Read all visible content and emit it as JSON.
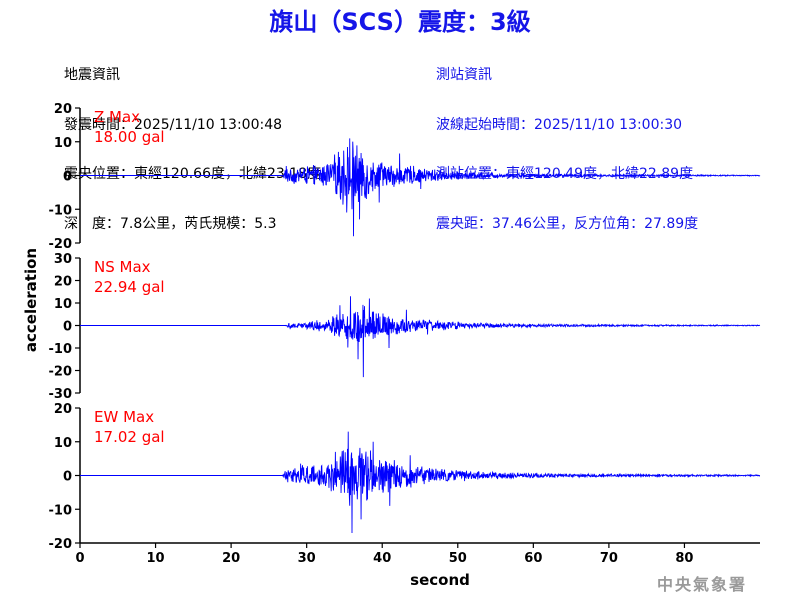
{
  "header": {
    "title": "旗山（SCS）震度：3級"
  },
  "quake_info": {
    "heading": "地震資訊",
    "origin_time": "發震時間：2025/11/10 13:00:48",
    "epicenter": "震央位置：東經120.66度，北緯23.18度",
    "depth_magnitude": "深　度：7.8公里，芮氏規模：5.3"
  },
  "station_info": {
    "heading": "測站資訊",
    "wave_start": "波線起始時間：2025/11/10 13:00:30",
    "station_location": "測站位置：東經120.49度，北緯22.89度",
    "distance_azimuth": "震央距：37.46公里，反方位角：27.89度"
  },
  "watermark": "中央氣象署",
  "colors": {
    "title": "#1515e8",
    "station_text": "#1515e8",
    "trace": "#0000ff",
    "max_label": "#ff0000",
    "axes": "#000000"
  },
  "chart_data": {
    "type": "line",
    "xlabel": "second",
    "ylabel": "acceleration",
    "xlim": [
      0,
      90
    ],
    "x_ticks": [
      "0",
      "10",
      "20",
      "30",
      "40",
      "50",
      "60",
      "70",
      "80"
    ],
    "grid": false,
    "panels": [
      {
        "component": "Z",
        "max_label": "Z Max",
        "max_value": "18.00 gal",
        "ylim": [
          -20,
          20
        ],
        "y_ticks": [
          "20",
          "10",
          "0",
          "-10",
          "-20"
        ],
        "series": {
          "onset": 27,
          "peak_time": 36.2,
          "peak": 18.0,
          "peak_sign": -1,
          "env": [
            [
              0,
              0
            ],
            [
              26.8,
              0.1
            ],
            [
              27.2,
              2.5
            ],
            [
              30,
              3
            ],
            [
              33,
              4
            ],
            [
              34.5,
              9
            ],
            [
              35.5,
              11
            ],
            [
              36.5,
              11
            ],
            [
              37.5,
              9
            ],
            [
              38.5,
              6
            ],
            [
              40,
              4.5
            ],
            [
              42,
              3.8
            ],
            [
              44,
              3
            ],
            [
              47,
              2
            ],
            [
              50,
              1.3
            ],
            [
              55,
              0.8
            ],
            [
              60,
              0.6
            ],
            [
              70,
              0.4
            ],
            [
              80,
              0.25
            ],
            [
              90,
              0.15
            ]
          ],
          "spikes": [
            [
              27.3,
              2.8
            ],
            [
              36.2,
              -18.0
            ],
            [
              35.7,
              11.0
            ],
            [
              37,
              -13
            ],
            [
              34.2,
              7
            ],
            [
              39.6,
              -8
            ],
            [
              42.3,
              6.5
            ],
            [
              45.1,
              -4
            ]
          ]
        }
      },
      {
        "component": "NS",
        "max_label": "NS Max",
        "max_value": "22.94 gal",
        "ylim": [
          -30,
          30
        ],
        "y_ticks": [
          "30",
          "20",
          "10",
          "0",
          "-10",
          "-20",
          "-30"
        ],
        "series": {
          "onset": 27.5,
          "peak_time": 37.5,
          "peak": 22.94,
          "peak_sign": -1,
          "env": [
            [
              0,
              0
            ],
            [
              27.3,
              0.1
            ],
            [
              27.7,
              1.5
            ],
            [
              30,
              2
            ],
            [
              33,
              3.5
            ],
            [
              34.5,
              8
            ],
            [
              35.5,
              10
            ],
            [
              37,
              10
            ],
            [
              38.5,
              8
            ],
            [
              40,
              6
            ],
            [
              42,
              4.5
            ],
            [
              44,
              3.5
            ],
            [
              47,
              2.5
            ],
            [
              50,
              1.8
            ],
            [
              55,
              1.2
            ],
            [
              60,
              0.8
            ],
            [
              70,
              0.5
            ],
            [
              80,
              0.35
            ],
            [
              90,
              0.2
            ]
          ],
          "spikes": [
            [
              37.5,
              -22.94
            ],
            [
              35.8,
              13
            ],
            [
              36.8,
              -15
            ],
            [
              34.4,
              9
            ],
            [
              38.3,
              12
            ],
            [
              40.9,
              -10
            ],
            [
              43.2,
              7
            ],
            [
              46,
              -4
            ]
          ]
        }
      },
      {
        "component": "EW",
        "max_label": "EW Max",
        "max_value": "17.02 gal",
        "ylim": [
          -20,
          20
        ],
        "y_ticks": [
          "20",
          "10",
          "0",
          "-10",
          "-20"
        ],
        "series": {
          "onset": 27,
          "peak_time": 36.0,
          "peak": 17.02,
          "peak_sign": -1,
          "env": [
            [
              0,
              0
            ],
            [
              26.8,
              0.1
            ],
            [
              27.2,
              2
            ],
            [
              29,
              3
            ],
            [
              31.5,
              4
            ],
            [
              33,
              5
            ],
            [
              34.5,
              9
            ],
            [
              35.5,
              11
            ],
            [
              37,
              10
            ],
            [
              38.5,
              8
            ],
            [
              40,
              6
            ],
            [
              42,
              4.5
            ],
            [
              44,
              3.5
            ],
            [
              47,
              2.5
            ],
            [
              50,
              1.8
            ],
            [
              55,
              1.2
            ],
            [
              60,
              0.8
            ],
            [
              70,
              0.5
            ],
            [
              80,
              0.35
            ],
            [
              90,
              0.2
            ]
          ],
          "spikes": [
            [
              36.0,
              -17.02
            ],
            [
              35.5,
              13
            ],
            [
              37.2,
              -13
            ],
            [
              33.8,
              7
            ],
            [
              38.8,
              10
            ],
            [
              41,
              -9
            ],
            [
              29.2,
              3.5
            ],
            [
              43.7,
              6
            ]
          ]
        }
      }
    ]
  }
}
